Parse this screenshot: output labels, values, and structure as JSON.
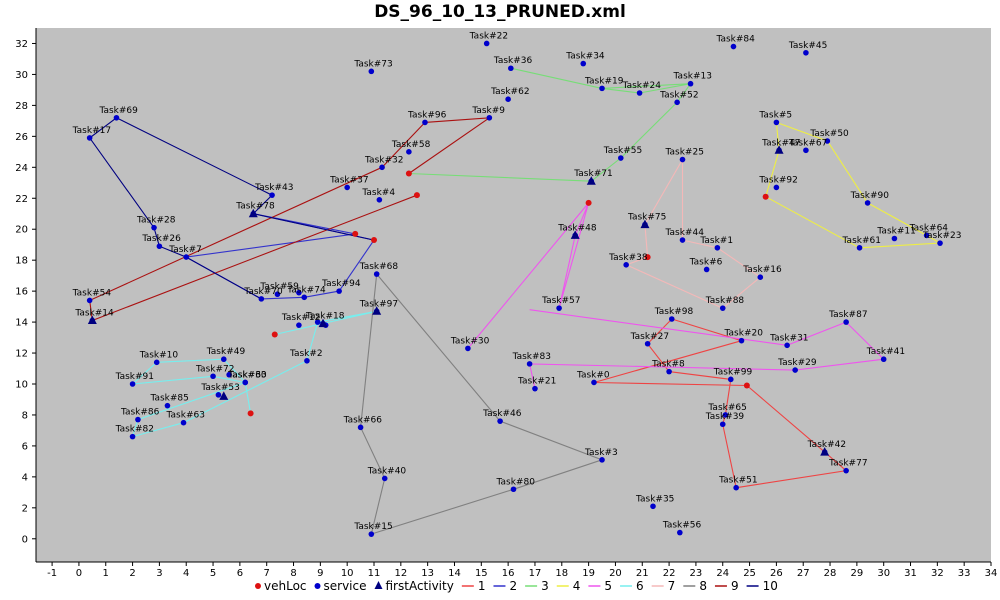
{
  "chart_data": {
    "type": "scatter",
    "title": "DS_96_10_13_PRUNED.xml",
    "xlim": [
      -1.6,
      34
    ],
    "ylim": [
      -1.5,
      33
    ],
    "xticks": [
      -1,
      0,
      1,
      2,
      3,
      4,
      5,
      6,
      7,
      8,
      9,
      10,
      11,
      12,
      13,
      14,
      15,
      16,
      17,
      18,
      19,
      20,
      21,
      22,
      23,
      24,
      25,
      26,
      27,
      28,
      29,
      30,
      31,
      32,
      33,
      34
    ],
    "yticks": [
      0,
      2,
      4,
      6,
      8,
      10,
      12,
      14,
      16,
      18,
      20,
      22,
      24,
      26,
      28,
      30,
      32
    ],
    "grid": false,
    "legend_position": "bottom",
    "colors": {
      "plot_bg": "#c0c0c0",
      "point": "#0000cc",
      "vehLoc": "#dd1111",
      "firstActivity": "#000080",
      "routes": {
        "1": "#ee4444",
        "2": "#3333cc",
        "3": "#77dd77",
        "4": "#eeee44",
        "5": "#ee55ee",
        "6": "#77eeee",
        "7": "#f4b8b8",
        "8": "#808080",
        "9": "#aa1111",
        "10": "#000080"
      }
    },
    "legend": [
      {
        "label": "vehLoc",
        "kind": "vehLoc"
      },
      {
        "label": "service",
        "kind": "service"
      },
      {
        "label": "firstActivity",
        "kind": "firstActivity"
      },
      {
        "label": "1",
        "kind": "route",
        "route": "1"
      },
      {
        "label": "2",
        "kind": "route",
        "route": "2"
      },
      {
        "label": "3",
        "kind": "route",
        "route": "3"
      },
      {
        "label": "4",
        "kind": "route",
        "route": "4"
      },
      {
        "label": "5",
        "kind": "route",
        "route": "5"
      },
      {
        "label": "6",
        "kind": "route",
        "route": "6"
      },
      {
        "label": "7",
        "kind": "route",
        "route": "7"
      },
      {
        "label": "8",
        "kind": "route",
        "route": "8"
      },
      {
        "label": "9",
        "kind": "route",
        "route": "9"
      },
      {
        "label": "10",
        "kind": "route",
        "route": "10"
      }
    ],
    "tasks": [
      {
        "id": "Task#0",
        "x": 19.2,
        "y": 10.1
      },
      {
        "id": "Task#1",
        "x": 23.8,
        "y": 18.8
      },
      {
        "id": "Task#2",
        "x": 8.5,
        "y": 11.5
      },
      {
        "id": "Task#3",
        "x": 19.5,
        "y": 5.1
      },
      {
        "id": "Task#4",
        "x": 11.2,
        "y": 21.9
      },
      {
        "id": "Task#5",
        "x": 26.0,
        "y": 26.9
      },
      {
        "id": "Task#6",
        "x": 23.4,
        "y": 17.4
      },
      {
        "id": "Task#7",
        "x": 4.0,
        "y": 18.2
      },
      {
        "id": "Task#8",
        "x": 22.0,
        "y": 10.8
      },
      {
        "id": "Task#9",
        "x": 15.3,
        "y": 27.2
      },
      {
        "id": "Task#10",
        "x": 2.9,
        "y": 11.4
      },
      {
        "id": "Task#11",
        "x": 30.4,
        "y": 19.4
      },
      {
        "id": "Task#12",
        "x": 8.2,
        "y": 13.8
      },
      {
        "id": "Task#13",
        "x": 22.8,
        "y": 29.4
      },
      {
        "id": "Task#14",
        "x": 0.5,
        "y": 14.1
      },
      {
        "id": "Task#15",
        "x": 10.9,
        "y": 0.3
      },
      {
        "id": "Task#16",
        "x": 25.4,
        "y": 16.9
      },
      {
        "id": "Task#17",
        "x": 0.4,
        "y": 25.9
      },
      {
        "id": "Task#18",
        "x": 9.1,
        "y": 13.9
      },
      {
        "id": "Task#19",
        "x": 19.5,
        "y": 29.1
      },
      {
        "id": "Task#20",
        "x": 24.7,
        "y": 12.8
      },
      {
        "id": "Task#21",
        "x": 17.0,
        "y": 9.7
      },
      {
        "id": "Task#22",
        "x": 15.2,
        "y": 32.0
      },
      {
        "id": "Task#23",
        "x": 32.1,
        "y": 19.1
      },
      {
        "id": "Task#24",
        "x": 20.9,
        "y": 28.8
      },
      {
        "id": "Task#25",
        "x": 22.5,
        "y": 24.5
      },
      {
        "id": "Task#26",
        "x": 3.0,
        "y": 18.9
      },
      {
        "id": "Task#27",
        "x": 21.2,
        "y": 12.6
      },
      {
        "id": "Task#28",
        "x": 2.8,
        "y": 20.1
      },
      {
        "id": "Task#29",
        "x": 26.7,
        "y": 10.9
      },
      {
        "id": "Task#30",
        "x": 14.5,
        "y": 12.3
      },
      {
        "id": "Task#31",
        "x": 26.4,
        "y": 12.5
      },
      {
        "id": "Task#32",
        "x": 11.3,
        "y": 24.0
      },
      {
        "id": "Task#33",
        "x": 6.2,
        "y": 10.1
      },
      {
        "id": "Task#34",
        "x": 18.8,
        "y": 30.7
      },
      {
        "id": "Task#35",
        "x": 21.4,
        "y": 2.1
      },
      {
        "id": "Task#36",
        "x": 16.1,
        "y": 30.4
      },
      {
        "id": "Task#37",
        "x": 10.0,
        "y": 22.7
      },
      {
        "id": "Task#38",
        "x": 20.4,
        "y": 17.7
      },
      {
        "id": "Task#39",
        "x": 24.0,
        "y": 7.4
      },
      {
        "id": "Task#40",
        "x": 11.4,
        "y": 3.9
      },
      {
        "id": "Task#41",
        "x": 30.0,
        "y": 11.6
      },
      {
        "id": "Task#42",
        "x": 27.8,
        "y": 5.6
      },
      {
        "id": "Task#43",
        "x": 7.2,
        "y": 22.2
      },
      {
        "id": "Task#44",
        "x": 22.5,
        "y": 19.3
      },
      {
        "id": "Task#45",
        "x": 27.1,
        "y": 31.4
      },
      {
        "id": "Task#46",
        "x": 15.7,
        "y": 7.6
      },
      {
        "id": "Task#47",
        "x": 26.1,
        "y": 25.1
      },
      {
        "id": "Task#48",
        "x": 18.5,
        "y": 19.6
      },
      {
        "id": "Task#49",
        "x": 5.4,
        "y": 11.6
      },
      {
        "id": "Task#50",
        "x": 27.9,
        "y": 25.7
      },
      {
        "id": "Task#51",
        "x": 24.5,
        "y": 3.3
      },
      {
        "id": "Task#52",
        "x": 22.3,
        "y": 28.2
      },
      {
        "id": "Task#53",
        "x": 5.2,
        "y": 9.3
      },
      {
        "id": "Task#54",
        "x": 0.4,
        "y": 15.4
      },
      {
        "id": "Task#55",
        "x": 20.2,
        "y": 24.6
      },
      {
        "id": "Task#56",
        "x": 22.4,
        "y": 0.4
      },
      {
        "id": "Task#57",
        "x": 17.9,
        "y": 14.9
      },
      {
        "id": "Task#58",
        "x": 12.3,
        "y": 25.0
      },
      {
        "id": "Task#59",
        "x": 7.4,
        "y": 15.8
      },
      {
        "id": "Task#60",
        "x": 6.2,
        "y": 10.1
      },
      {
        "id": "Task#61",
        "x": 29.1,
        "y": 18.8
      },
      {
        "id": "Task#62",
        "x": 16.0,
        "y": 28.4
      },
      {
        "id": "Task#63",
        "x": 3.9,
        "y": 7.5
      },
      {
        "id": "Task#64",
        "x": 31.6,
        "y": 19.6
      },
      {
        "id": "Task#65",
        "x": 24.1,
        "y": 8.0
      },
      {
        "id": "Task#66",
        "x": 10.5,
        "y": 7.2
      },
      {
        "id": "Task#67",
        "x": 27.1,
        "y": 25.1
      },
      {
        "id": "Task#68",
        "x": 11.1,
        "y": 17.1
      },
      {
        "id": "Task#69",
        "x": 1.4,
        "y": 27.2
      },
      {
        "id": "Task#70",
        "x": 6.8,
        "y": 15.5
      },
      {
        "id": "Task#71",
        "x": 19.1,
        "y": 23.1
      },
      {
        "id": "Task#72",
        "x": 5.0,
        "y": 10.5
      },
      {
        "id": "Task#73",
        "x": 10.9,
        "y": 30.2
      },
      {
        "id": "Task#74",
        "x": 8.4,
        "y": 15.6
      },
      {
        "id": "Task#75",
        "x": 21.1,
        "y": 20.3
      },
      {
        "id": "Task#77",
        "x": 28.6,
        "y": 4.4
      },
      {
        "id": "Task#78",
        "x": 6.5,
        "y": 21.0
      },
      {
        "id": "Task#80",
        "x": 16.2,
        "y": 3.2
      },
      {
        "id": "Task#82",
        "x": 2.0,
        "y": 6.6
      },
      {
        "id": "Task#83",
        "x": 16.8,
        "y": 11.3
      },
      {
        "id": "Task#84",
        "x": 24.4,
        "y": 31.8
      },
      {
        "id": "Task#85",
        "x": 3.3,
        "y": 8.6
      },
      {
        "id": "Task#86",
        "x": 2.2,
        "y": 7.7
      },
      {
        "id": "Task#87",
        "x": 28.6,
        "y": 14.0
      },
      {
        "id": "Task#88",
        "x": 24.0,
        "y": 14.9
      },
      {
        "id": "Task#90",
        "x": 29.4,
        "y": 21.7
      },
      {
        "id": "Task#91",
        "x": 2.0,
        "y": 10.0
      },
      {
        "id": "Task#92",
        "x": 26.0,
        "y": 22.7
      },
      {
        "id": "Task#94",
        "x": 9.7,
        "y": 16.0
      },
      {
        "id": "Task#96",
        "x": 12.9,
        "y": 26.9
      },
      {
        "id": "Task#97",
        "x": 11.1,
        "y": 14.7
      },
      {
        "id": "Task#98",
        "x": 22.1,
        "y": 14.2
      },
      {
        "id": "Task#99",
        "x": 24.3,
        "y": 10.3
      }
    ],
    "unlabeled_service_points": [
      {
        "x": 8.2,
        "y": 15.9
      },
      {
        "x": 9.2,
        "y": 13.8
      },
      {
        "x": 8.9,
        "y": 14.0
      },
      {
        "x": 5.6,
        "y": 10.6
      }
    ],
    "first_activities": [
      {
        "x": 0.5,
        "y": 14.1
      },
      {
        "x": 6.5,
        "y": 21.0
      },
      {
        "x": 9.1,
        "y": 13.9
      },
      {
        "x": 11.1,
        "y": 14.7
      },
      {
        "x": 5.4,
        "y": 9.2
      },
      {
        "x": 19.1,
        "y": 23.1
      },
      {
        "x": 18.5,
        "y": 19.6
      },
      {
        "x": 21.1,
        "y": 20.3
      },
      {
        "x": 26.1,
        "y": 25.1
      },
      {
        "x": 27.8,
        "y": 5.6
      }
    ],
    "vehicle_locations": [
      {
        "x": 12.6,
        "y": 22.2
      },
      {
        "x": 12.3,
        "y": 23.6
      },
      {
        "x": 10.3,
        "y": 19.7
      },
      {
        "x": 11.0,
        "y": 19.3
      },
      {
        "x": 7.3,
        "y": 13.2
      },
      {
        "x": 6.4,
        "y": 8.1
      },
      {
        "x": 19.0,
        "y": 21.7
      },
      {
        "x": 21.2,
        "y": 18.2
      },
      {
        "x": 25.6,
        "y": 22.1
      },
      {
        "x": 24.9,
        "y": 9.9
      }
    ],
    "routes": [
      {
        "name": "1",
        "points": [
          [
            24.9,
            9.9
          ],
          [
            27.8,
            5.6
          ],
          [
            28.6,
            4.4
          ],
          [
            24.5,
            3.3
          ],
          [
            24.0,
            7.4
          ],
          [
            24.1,
            8.0
          ],
          [
            24.3,
            10.3
          ],
          [
            22.0,
            10.8
          ],
          [
            21.2,
            12.6
          ],
          [
            22.1,
            14.2
          ],
          [
            24.7,
            12.8
          ],
          [
            19.2,
            10.1
          ],
          [
            24.9,
            9.9
          ]
        ]
      },
      {
        "name": "2",
        "points": [
          [
            10.3,
            19.7
          ],
          [
            6.5,
            21.0
          ],
          [
            11.0,
            19.3
          ],
          [
            9.7,
            16.0
          ],
          [
            8.4,
            15.6
          ],
          [
            6.8,
            15.5
          ],
          [
            4.0,
            18.2
          ],
          [
            10.3,
            19.7
          ]
        ]
      },
      {
        "name": "3",
        "points": [
          [
            12.3,
            23.6
          ],
          [
            19.1,
            23.1
          ],
          [
            20.2,
            24.6
          ],
          [
            22.3,
            28.2
          ],
          [
            22.8,
            29.4
          ],
          [
            20.9,
            28.8
          ],
          [
            19.5,
            29.1
          ],
          [
            16.1,
            30.4
          ],
          [
            19.5,
            29.1
          ],
          [
            22.8,
            29.4
          ]
        ]
      },
      {
        "name": "4",
        "points": [
          [
            25.6,
            22.1
          ],
          [
            26.1,
            25.1
          ],
          [
            26.0,
            26.9
          ],
          [
            27.9,
            25.7
          ],
          [
            29.4,
            21.7
          ],
          [
            31.6,
            19.6
          ],
          [
            32.1,
            19.1
          ],
          [
            29.1,
            18.8
          ],
          [
            25.6,
            22.1
          ]
        ]
      },
      {
        "name": "5",
        "points": [
          [
            19.0,
            21.7
          ],
          [
            18.5,
            19.6
          ],
          [
            17.9,
            14.9
          ],
          [
            19.0,
            21.7
          ],
          [
            14.5,
            12.3
          ]
        ]
      },
      {
        "name": "5",
        "points": [
          [
            16.8,
            14.8
          ],
          [
            26.4,
            12.5
          ],
          [
            28.6,
            14.0
          ],
          [
            30.0,
            11.6
          ],
          [
            26.7,
            10.9
          ],
          [
            16.8,
            11.3
          ],
          [
            17.0,
            9.7
          ]
        ]
      },
      {
        "name": "6",
        "points": [
          [
            7.3,
            13.2
          ],
          [
            11.1,
            14.7
          ],
          [
            8.9,
            14.0
          ],
          [
            8.5,
            11.5
          ],
          [
            3.9,
            7.5
          ],
          [
            2.0,
            6.6
          ],
          [
            2.2,
            7.7
          ],
          [
            6.2,
            10.1
          ],
          [
            5.0,
            10.5
          ],
          [
            2.0,
            10.0
          ],
          [
            2.9,
            11.4
          ],
          [
            5.4,
            11.6
          ],
          [
            6.2,
            10.1
          ],
          [
            6.4,
            8.1
          ]
        ]
      },
      {
        "name": "7",
        "points": [
          [
            21.2,
            18.2
          ],
          [
            21.1,
            20.3
          ],
          [
            22.5,
            24.5
          ],
          [
            22.5,
            19.3
          ],
          [
            23.8,
            18.8
          ],
          [
            25.4,
            16.9
          ],
          [
            24.0,
            14.9
          ],
          [
            20.4,
            17.7
          ],
          [
            21.2,
            18.2
          ]
        ]
      },
      {
        "name": "8",
        "points": [
          [
            11.1,
            17.1
          ],
          [
            10.5,
            7.2
          ],
          [
            11.4,
            3.9
          ],
          [
            10.9,
            0.3
          ],
          [
            16.2,
            3.2
          ],
          [
            19.5,
            5.1
          ],
          [
            15.7,
            7.6
          ],
          [
            11.1,
            17.1
          ]
        ]
      },
      {
        "name": "9",
        "points": [
          [
            12.6,
            22.2
          ],
          [
            0.5,
            14.1
          ],
          [
            0.4,
            15.4
          ],
          [
            11.3,
            24.0
          ],
          [
            12.9,
            26.9
          ],
          [
            15.3,
            27.2
          ],
          [
            12.3,
            23.6
          ]
        ]
      },
      {
        "name": "10",
        "points": [
          [
            11.0,
            19.3
          ],
          [
            6.5,
            21.0
          ],
          [
            7.2,
            22.2
          ],
          [
            1.4,
            27.2
          ],
          [
            0.4,
            25.9
          ],
          [
            2.8,
            20.1
          ],
          [
            3.0,
            18.9
          ],
          [
            4.0,
            18.2
          ],
          [
            6.8,
            15.5
          ]
        ]
      }
    ]
  }
}
